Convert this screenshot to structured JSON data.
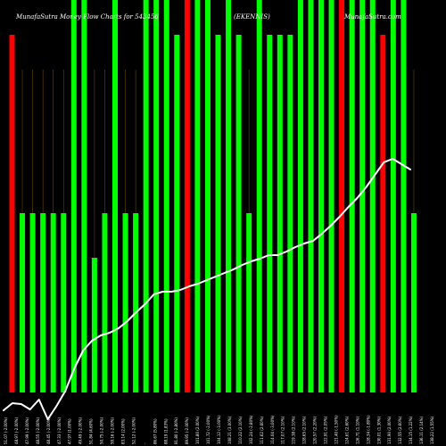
{
  "header": {
    "left": "MunafaSutra  Money Flow  Charts for 543456",
    "middle": "(EKENNIS)",
    "right": "MunafaSutra.com"
  },
  "chart_data": {
    "type": "bar",
    "title": "MunafaSutra  Money Flow  Charts for 543456",
    "colors": {
      "up": "#00ff00",
      "down": "#ff0000",
      "line": "#ffffff",
      "guide": "#b8860b",
      "background": "#000000"
    },
    "bars": [
      {
        "level": "high",
        "color": "down"
      },
      {
        "level": "mid",
        "color": "up"
      },
      {
        "level": "mid",
        "color": "up"
      },
      {
        "level": "mid",
        "color": "up"
      },
      {
        "level": "mid",
        "color": "up"
      },
      {
        "level": "mid",
        "color": "up"
      },
      {
        "level": "full",
        "color": "up"
      },
      {
        "level": "full",
        "color": "up"
      },
      {
        "level": "low",
        "color": "up"
      },
      {
        "level": "mid",
        "color": "up"
      },
      {
        "level": "full",
        "color": "up"
      },
      {
        "level": "mid",
        "color": "up"
      },
      {
        "level": "mid",
        "color": "up"
      },
      {
        "level": "full",
        "color": "up"
      },
      {
        "level": "full",
        "color": "up"
      },
      {
        "level": "full",
        "color": "up"
      },
      {
        "level": "high",
        "color": "up"
      },
      {
        "level": "full",
        "color": "down"
      },
      {
        "level": "full",
        "color": "up"
      },
      {
        "level": "full",
        "color": "up"
      },
      {
        "level": "high",
        "color": "up"
      },
      {
        "level": "full",
        "color": "up"
      },
      {
        "level": "high",
        "color": "up"
      },
      {
        "level": "mid",
        "color": "up"
      },
      {
        "level": "full",
        "color": "up"
      },
      {
        "level": "high",
        "color": "up"
      },
      {
        "level": "high",
        "color": "up"
      },
      {
        "level": "high",
        "color": "up"
      },
      {
        "level": "full",
        "color": "up"
      },
      {
        "level": "full",
        "color": "up"
      },
      {
        "level": "full",
        "color": "up"
      },
      {
        "level": "full",
        "color": "up"
      },
      {
        "level": "full",
        "color": "down"
      },
      {
        "level": "full",
        "color": "up"
      },
      {
        "level": "full",
        "color": "up"
      },
      {
        "level": "full",
        "color": "up"
      },
      {
        "level": "high",
        "color": "down"
      },
      {
        "level": "full",
        "color": "up"
      },
      {
        "level": "full",
        "color": "up"
      },
      {
        "level": "mid",
        "color": "up"
      }
    ],
    "line": [
      460,
      452,
      453,
      459,
      448,
      470,
      455,
      438,
      413,
      393,
      382,
      376,
      373,
      368,
      360,
      350,
      341,
      330,
      327,
      327,
      325,
      321,
      318,
      314,
      310,
      306,
      302,
      297,
      293,
      290,
      286,
      286,
      282,
      277,
      273,
      270,
      262,
      253,
      243,
      232,
      222,
      210,
      196,
      182,
      178,
      184,
      190
    ],
    "x_tick_labels": [
      "51.07 (-2.00%)",
      "48.97 (-2.00%)",
      "47.99 (-2.00%)",
      "48.55 (-2.00%)",
      "48.45 (-2.00%)",
      "47.33 (-2.00%)",
      "47.97 (1.00%)",
      "49.49 (-2.00%)",
      "51.84 (4.60%)",
      "50.75 (-2.00%)",
      "59.16 (-2.00%)",
      "83.14 (2.00%)",
      "52.12 (-2.00%)",
      "-",
      "86.67 (5.80%)",
      "88.19 (1.83%)",
      "91.80 (-2.80%)",
      "89.95 (-2.00%)",
      "101.80 (2.00%)",
      "101.72 (-2.00%)",
      "104.12 (-3.00%)",
      "108.21 (3.00%)",
      "110.22 (2.10%)",
      "102.24 (-2.80%)",
      "111.62 (2.60%)",
      "114.04 (-3.00%)",
      "117.07 (2.10%)",
      "119.38 (2.10%)",
      "128.65 (2.10%)",
      "120.57 (2.20%)",
      "122.91 (2.05%)",
      "121.40 (-1.50%)",
      "124.61 (2.60%)",
      "126.71 (1.10%)",
      "128.34 (-1.80%)",
      "130.01 (1.30%)",
      "131.90 (2.00%)",
      "132.55 (2.60%)",
      "134.15 (1.22%)",
      "136.11 (2.14%)",
      "138.22 (1.55%)"
    ]
  }
}
